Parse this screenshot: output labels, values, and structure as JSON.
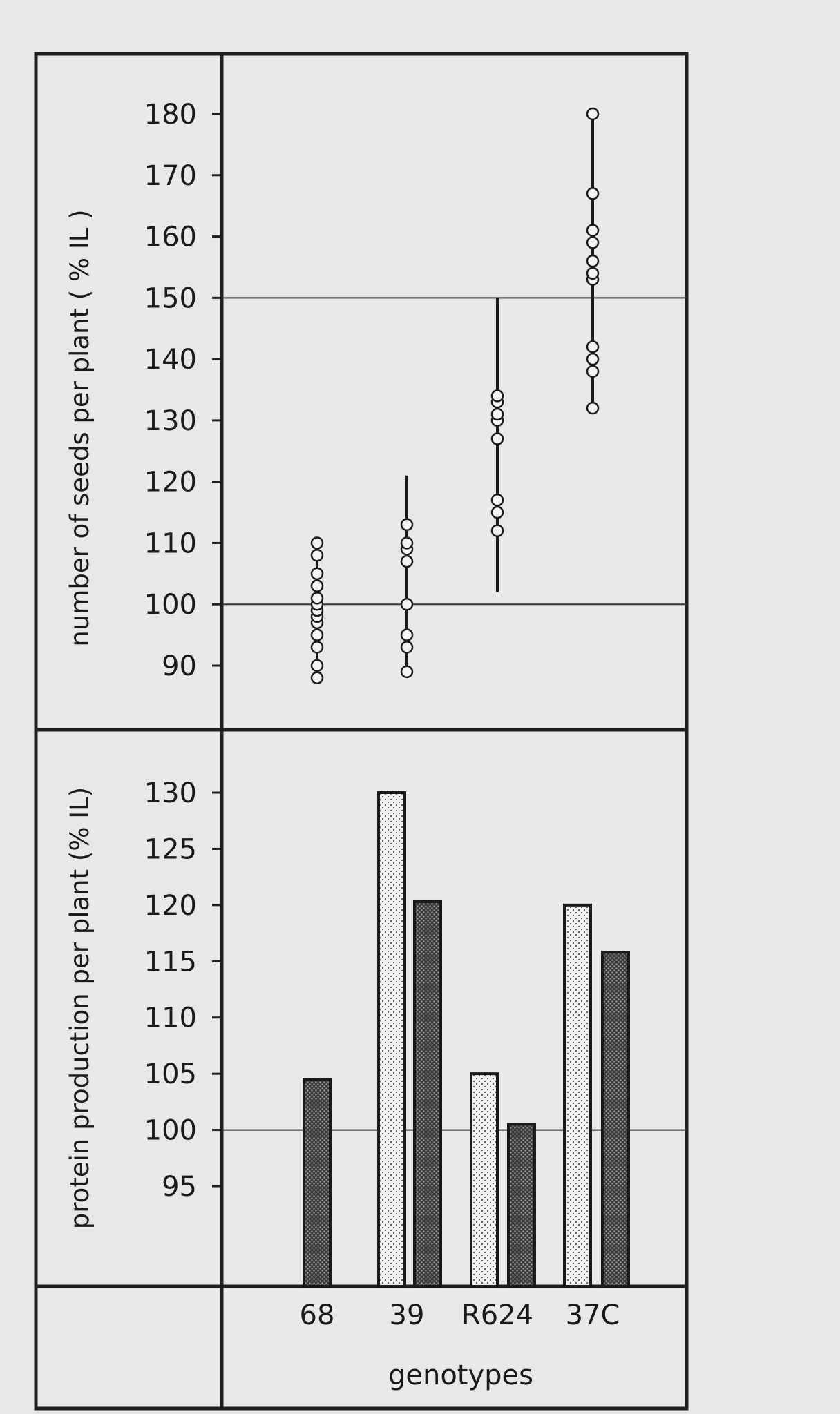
{
  "chart_data": [
    {
      "type": "scatter",
      "ylabel": "number of seeds per plant ( % IL )",
      "yticks": [
        90,
        100,
        110,
        120,
        130,
        140,
        150,
        160,
        170,
        180
      ],
      "ylim": [
        85,
        188
      ],
      "reference_lines": [
        100,
        150
      ],
      "series": [
        {
          "category": "68",
          "range": [
            87,
            110
          ],
          "points": [
            88,
            90,
            93,
            95,
            97,
            98,
            99,
            100,
            101,
            103,
            105,
            108,
            110
          ]
        },
        {
          "category": "39",
          "range": [
            89,
            121
          ],
          "points": [
            89,
            93,
            95,
            100,
            107,
            109,
            110,
            113
          ]
        },
        {
          "category": "R624",
          "range": [
            102,
            150
          ],
          "points": [
            112,
            115,
            117,
            127,
            130,
            131,
            133,
            134
          ]
        },
        {
          "category": "37C",
          "range": [
            132,
            180
          ],
          "points": [
            132,
            138,
            140,
            142,
            153,
            154,
            156,
            159,
            161,
            167,
            180
          ]
        }
      ]
    },
    {
      "type": "bar",
      "ylabel": "protein production per plant (% IL)",
      "yticks": [
        95,
        100,
        105,
        110,
        115,
        120,
        125,
        130
      ],
      "ylim": [
        90,
        133
      ],
      "reference_lines": [
        100
      ],
      "bars": [
        {
          "category": "68",
          "style": "dark",
          "value": 104.5
        },
        {
          "category": "39",
          "style": "light",
          "value": 130
        },
        {
          "category": "39",
          "style": "dark",
          "value": 120.3
        },
        {
          "category": "R624",
          "style": "light",
          "value": 105
        },
        {
          "category": "R624",
          "style": "dark",
          "value": 100.5
        },
        {
          "category": "37C",
          "style": "light",
          "value": 120
        },
        {
          "category": "37C",
          "style": "dark",
          "value": 115.8
        }
      ],
      "categories": [
        "68",
        "39",
        "R624",
        "37C"
      ],
      "xlabel": "genotypes"
    }
  ]
}
